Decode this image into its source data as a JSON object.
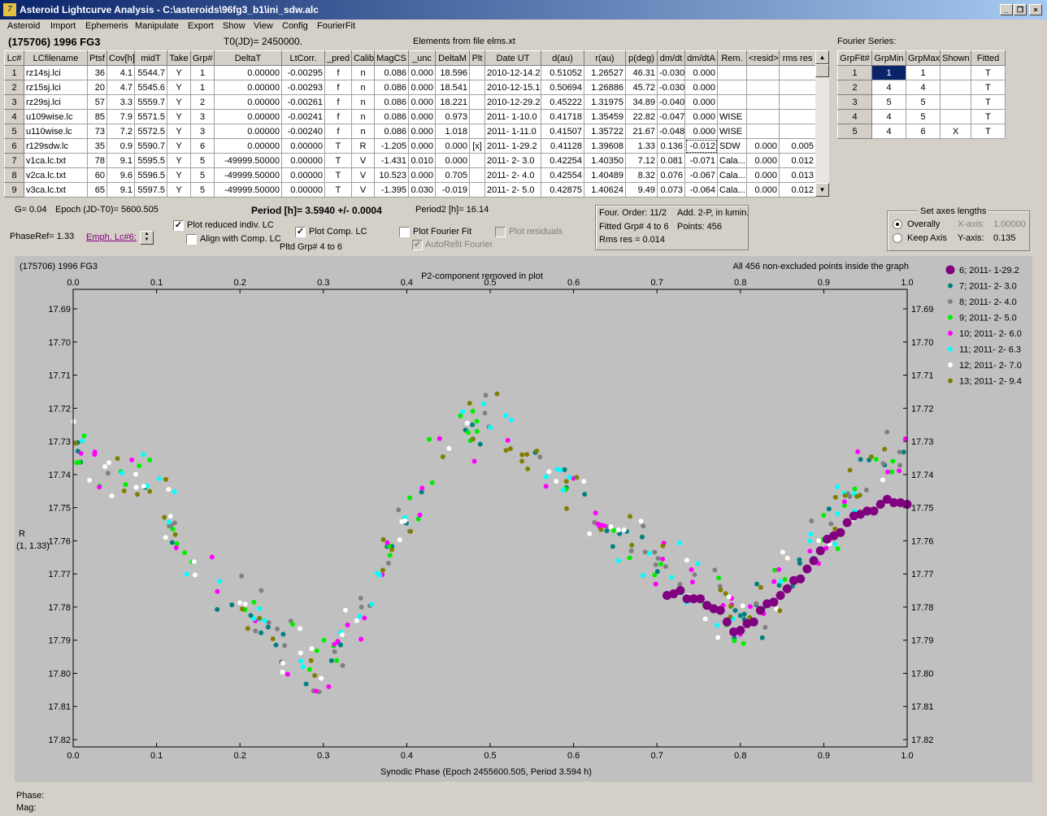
{
  "window": {
    "title": "Asteroid Lightcurve Analysis - C:\\asteroids\\96fg3_b1\\ini_sdw.alc"
  },
  "menu": [
    "Asteroid",
    "Import",
    "Ephemeris",
    "Manipulate",
    "Export",
    "Show",
    "View",
    "Config",
    "FourierFit"
  ],
  "header": {
    "object": "(175706) 1996 FG3",
    "t0": "T0(JD)= 2450000.",
    "elements": "Elements from file elms.xt"
  },
  "lc_table": {
    "columns": [
      "Lc#",
      "LCfilename",
      "Ptsf",
      "Cov[h]",
      "midT",
      "Take",
      "Grp#",
      "DeltaT",
      "LtCorr.",
      "_pred",
      "Calib.",
      "MagCS",
      "_unc",
      "DeltaM",
      "Plt",
      "Date UT",
      "d(au)",
      "r(au)",
      "p(deg)",
      "dm/dt",
      "dm/dtA",
      "Rem.",
      "<resid>",
      "rms res"
    ],
    "rows": [
      [
        "1",
        "rz14sj.lci",
        "36",
        "4.1",
        "5544.7",
        "Y",
        "1",
        "0.00000",
        "-0.00295",
        "f",
        "n",
        "0.086",
        "0.000",
        "18.596",
        "",
        "2010-12-14.2",
        "0.51052",
        "1.26527",
        "46.31",
        "-0.030",
        "0.000",
        "",
        "",
        ""
      ],
      [
        "2",
        "rz15sj.lci",
        "20",
        "4.7",
        "5545.6",
        "Y",
        "1",
        "0.00000",
        "-0.00293",
        "f",
        "n",
        "0.086",
        "0.000",
        "18.541",
        "",
        "2010-12-15.1",
        "0.50694",
        "1.26886",
        "45.72",
        "-0.030",
        "0.000",
        "",
        "",
        ""
      ],
      [
        "3",
        "rz29sj.lci",
        "57",
        "3.3",
        "5559.7",
        "Y",
        "2",
        "0.00000",
        "-0.00261",
        "f",
        "n",
        "0.086",
        "0.000",
        "18.221",
        "",
        "2010-12-29.2",
        "0.45222",
        "1.31975",
        "34.89",
        "-0.040",
        "0.000",
        "",
        "",
        ""
      ],
      [
        "4",
        "u109wise.lc",
        "85",
        "7.9",
        "5571.5",
        "Y",
        "3",
        "0.00000",
        "-0.00241",
        "f",
        "n",
        "0.086",
        "0.000",
        "0.973",
        "",
        "2011- 1-10.0",
        "0.41718",
        "1.35459",
        "22.82",
        "-0.047",
        "0.000",
        "WISE",
        "",
        ""
      ],
      [
        "5",
        "u110wise.lc",
        "73",
        "7.2",
        "5572.5",
        "Y",
        "3",
        "0.00000",
        "-0.00240",
        "f",
        "n",
        "0.086",
        "0.000",
        "1.018",
        "",
        "2011- 1-11.0",
        "0.41507",
        "1.35722",
        "21.67",
        "-0.048",
        "0.000",
        "WISE",
        "",
        ""
      ],
      [
        "6",
        "r129sdw.lc",
        "35",
        "0.9",
        "5590.7",
        "Y",
        "6",
        "0.00000",
        "0.00000",
        "T",
        "R",
        "-1.205",
        "0.000",
        "0.000",
        "[x]",
        "2011- 1-29.2",
        "0.41128",
        "1.39608",
        "1.33",
        "0.136",
        "-0.012",
        "SDW",
        "0.000",
        "0.005"
      ],
      [
        "7",
        "v1ca.lc.txt",
        "78",
        "9.1",
        "5595.5",
        "Y",
        "5",
        "-49999.50000",
        "0.00000",
        "T",
        "V",
        "-1.431",
        "0.010",
        "0.000",
        "",
        "2011- 2- 3.0",
        "0.42254",
        "1.40350",
        "7.12",
        "0.081",
        "-0.071",
        "Cala...",
        "0.000",
        "0.012"
      ],
      [
        "8",
        "v2ca.lc.txt",
        "60",
        "9.6",
        "5596.5",
        "Y",
        "5",
        "-49999.50000",
        "0.00000",
        "T",
        "V",
        "10.523",
        "0.000",
        "0.705",
        "",
        "2011- 2- 4.0",
        "0.42554",
        "1.40489",
        "8.32",
        "0.076",
        "-0.067",
        "Cala...",
        "0.000",
        "0.013"
      ],
      [
        "9",
        "v3ca.lc.txt",
        "65",
        "9.1",
        "5597.5",
        "Y",
        "5",
        "-49999.50000",
        "0.00000",
        "T",
        "V",
        "-1.395",
        "0.030",
        "-0.019",
        "",
        "2011- 2- 5.0",
        "0.42875",
        "1.40624",
        "9.49",
        "0.073",
        "-0.064",
        "Cala...",
        "0.000",
        "0.012"
      ]
    ]
  },
  "fourier": {
    "label": "Fourier Series:",
    "columns": [
      "GrpFit#",
      "GrpMin",
      "GrpMax",
      "Shown",
      "Fitted"
    ],
    "rows": [
      [
        "1",
        "1",
        "1",
        "",
        "T"
      ],
      [
        "2",
        "4",
        "4",
        "",
        "T"
      ],
      [
        "3",
        "5",
        "5",
        "",
        "T"
      ],
      [
        "4",
        "4",
        "5",
        "",
        "T"
      ],
      [
        "5",
        "4",
        "6",
        "X",
        "T"
      ]
    ]
  },
  "controls": {
    "g": "G= 0.04",
    "epoch": "Epoch (JD-T0)= 5600.505",
    "period": "Period [h]= 3.5940 +/- 0.0004",
    "period2": "Period2 [h]= 16.14",
    "phaseref": "PhaseRef= 1.33",
    "emph": "Emph. Lc#6:",
    "cb_plot_reduced": "Plot reduced indiv. LC",
    "cb_align": "Align with Comp. LC",
    "cb_plot_comp": "Plot Comp. LC",
    "pltd_grp": "Pltd Grp#  4   to   6",
    "cb_fourier": "Plot Fourier Fit",
    "cb_autorefit": "AutoRefit Fourier",
    "cb_residuals": "Plot residuals"
  },
  "info": {
    "l1a": "Four. Order: 11/2",
    "l1b": "Add. 2-P, in lumin.",
    "l2a": "Fitted Grp# 4 to 6",
    "l2b": "Points: 456",
    "l3": "Rms res     = 0.014"
  },
  "axes": {
    "title": "Set axes lengths",
    "overall": "Overally",
    "keep": "Keep Axis",
    "xaxis_label": "X-axis:",
    "xaxis_val": "1.00000",
    "yaxis_label": "Y-axis:",
    "yaxis_val": "0.135"
  },
  "chart_data": {
    "type": "scatter",
    "title": "(175706) 1996 FG3",
    "subtitle": "P2-component removed in plot",
    "note": "All 456 non-excluded points inside the graph",
    "xlabel": "Synodic Phase (Epoch 2455600.505, Period 3.594 h)",
    "ylabel": "R",
    "ylabel2": "(1, 1.33)",
    "xlim": [
      0,
      1
    ],
    "ylim": [
      17.822,
      17.687
    ],
    "xticks": [
      "0.0",
      "0.1",
      "0.2",
      "0.3",
      "0.4",
      "0.5",
      "0.6",
      "0.7",
      "0.8",
      "0.9",
      "1.0"
    ],
    "yticks": [
      "17.69",
      "17.70",
      "17.71",
      "17.72",
      "17.73",
      "17.74",
      "17.75",
      "17.76",
      "17.77",
      "17.78",
      "17.79",
      "17.80",
      "17.81",
      "17.82"
    ],
    "series": [
      {
        "name": "6; 2011- 1-29.2",
        "color": "#800080"
      },
      {
        "name": "7; 2011- 2- 3.0",
        "color": "#008080"
      },
      {
        "name": "8; 2011- 2- 4.0",
        "color": "#808080"
      },
      {
        "name": "9; 2011- 2- 5.0",
        "color": "#00ee00"
      },
      {
        "name": "10; 2011- 2- 6.0",
        "color": "#ff00ff"
      },
      {
        "name": "11; 2011- 2- 6.3",
        "color": "#00ffff"
      },
      {
        "name": "12; 2011- 2- 7.0",
        "color": "#ffffff"
      },
      {
        "name": "13; 2011- 2- 9.4",
        "color": "#808000"
      }
    ],
    "series6_points": [
      [
        0.712,
        17.7765
      ],
      [
        0.72,
        17.776
      ],
      [
        0.728,
        17.775
      ],
      [
        0.736,
        17.7775
      ],
      [
        0.744,
        17.7775
      ],
      [
        0.752,
        17.7775
      ],
      [
        0.76,
        17.7795
      ],
      [
        0.768,
        17.7805
      ],
      [
        0.776,
        17.781
      ],
      [
        0.784,
        17.7845
      ],
      [
        0.792,
        17.7875
      ],
      [
        0.8,
        17.787
      ],
      [
        0.808,
        17.785
      ],
      [
        0.816,
        17.7845
      ],
      [
        0.824,
        17.781
      ],
      [
        0.832,
        17.779
      ],
      [
        0.84,
        17.7785
      ],
      [
        0.848,
        17.7765
      ],
      [
        0.856,
        17.7745
      ],
      [
        0.864,
        17.772
      ],
      [
        0.872,
        17.7715
      ],
      [
        0.88,
        17.7685
      ],
      [
        0.888,
        17.766
      ],
      [
        0.896,
        17.763
      ],
      [
        0.904,
        17.7595
      ],
      [
        0.912,
        17.7585
      ],
      [
        0.92,
        17.7575
      ],
      [
        0.928,
        17.7545
      ],
      [
        0.936,
        17.7525
      ],
      [
        0.944,
        17.752
      ],
      [
        0.952,
        17.751
      ],
      [
        0.96,
        17.751
      ],
      [
        0.968,
        17.749
      ],
      [
        0.976,
        17.7475
      ],
      [
        0.984,
        17.7485
      ],
      [
        0.992,
        17.7485
      ],
      [
        1.0,
        17.749
      ]
    ]
  },
  "status": {
    "phase": "Phase:",
    "mag": "Mag:"
  }
}
